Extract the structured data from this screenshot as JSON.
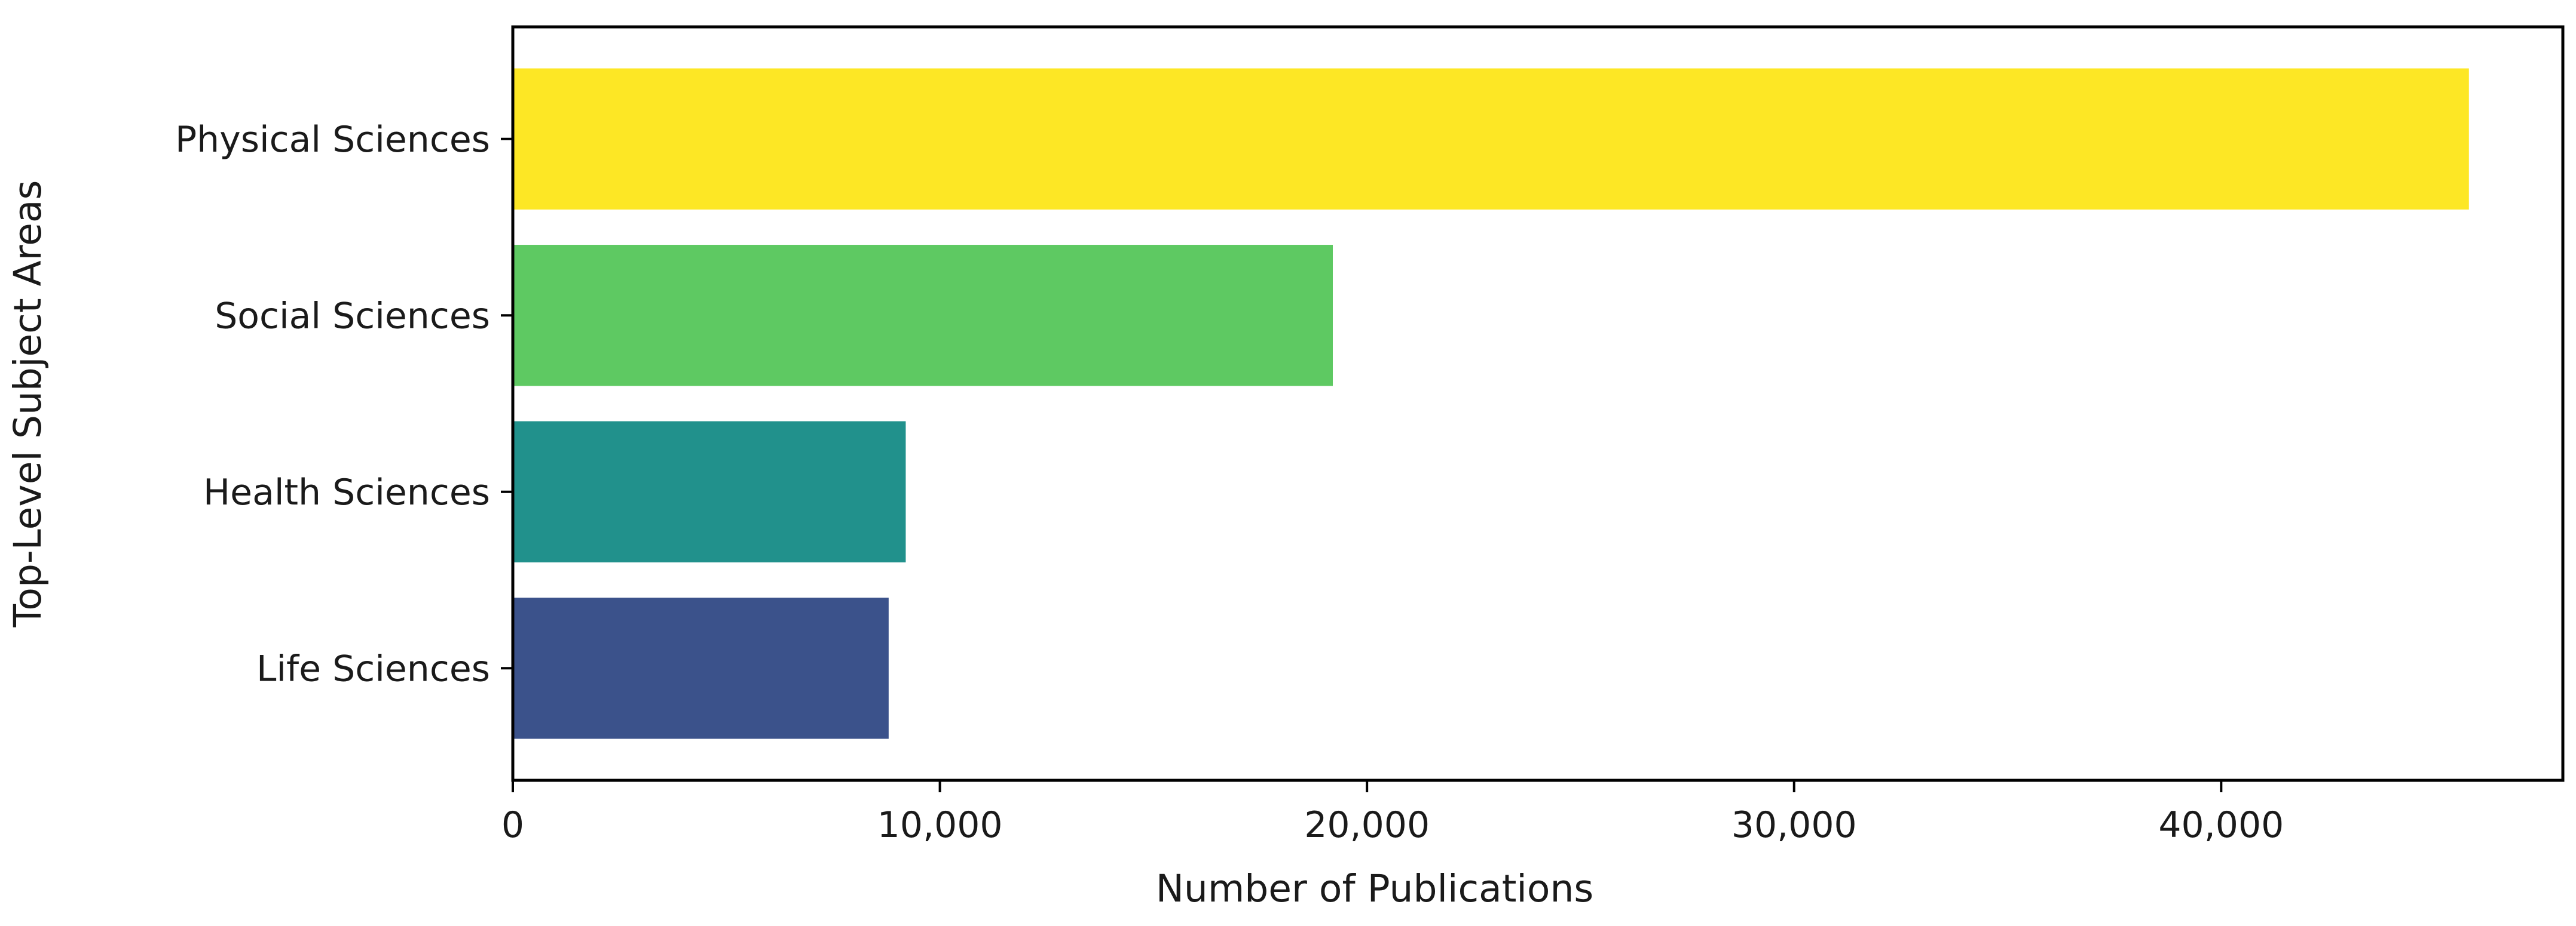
{
  "chart_data": {
    "type": "bar",
    "orientation": "horizontal",
    "title": "",
    "xlabel": "Number of Publications",
    "ylabel": "Top-Level Subject Areas",
    "categories": [
      "Physical Sciences",
      "Social Sciences",
      "Health Sciences",
      "Life Sciences"
    ],
    "values": [
      45800,
      19200,
      9200,
      8800
    ],
    "colors": [
      "#fde725",
      "#5ec962",
      "#21918c",
      "#3b528b"
    ],
    "xlim": [
      0,
      48000
    ],
    "xticks": [
      0,
      10000,
      20000,
      30000,
      40000
    ],
    "xtick_labels": [
      "0",
      "10,000",
      "20,000",
      "30,000",
      "40,000"
    ],
    "grid": false,
    "legend": "none"
  }
}
